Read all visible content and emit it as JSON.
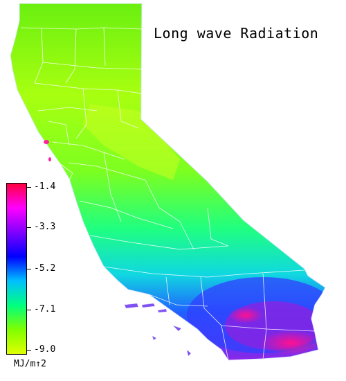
{
  "title": "Long wave Radiation",
  "legend": {
    "ticks": [
      "-1.4",
      "-3.3",
      "-5.2",
      "-7.1",
      "-9.0"
    ],
    "unit": "MJ/m↑2",
    "colors": [
      "#ff0040",
      "#ff00ff",
      "#8000ff",
      "#0000ff",
      "#00c0ff",
      "#00ff80",
      "#80ff00",
      "#e0ff00"
    ]
  }
}
